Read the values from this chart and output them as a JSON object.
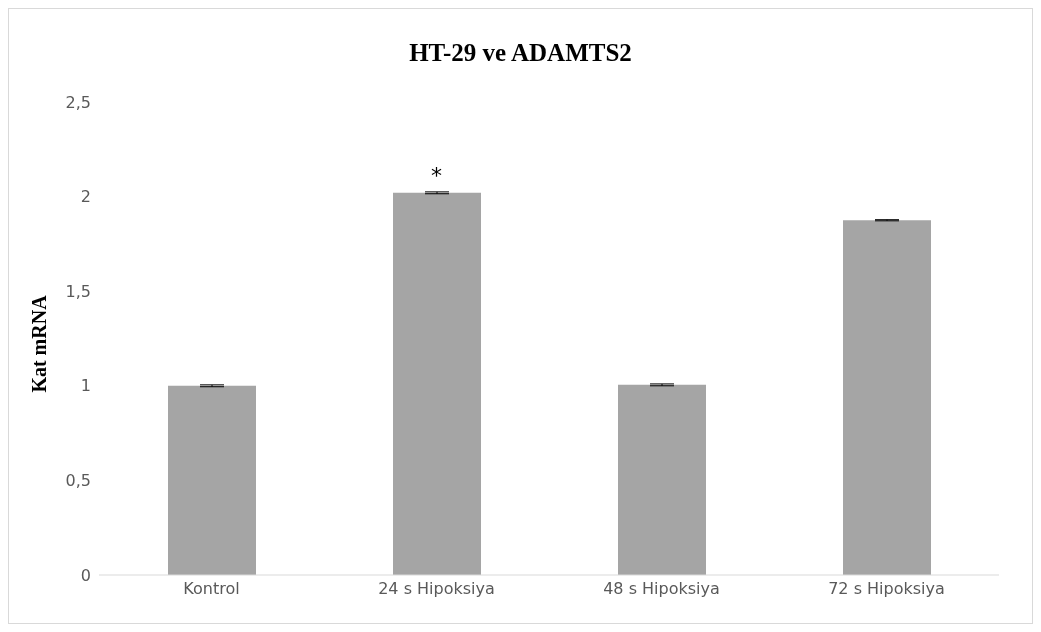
{
  "chart_data": {
    "type": "bar",
    "title": "HT-29 ve ADAMTS2",
    "ylabel": "Kat mRNA",
    "categories": [
      "Kontrol",
      "24 s Hipoksiya",
      "48 s Hipoksiya",
      "72 s Hipoksiya"
    ],
    "values": [
      1.0,
      2.02,
      1.005,
      1.875
    ],
    "errors": [
      0.005,
      0.005,
      0.005,
      0.003
    ],
    "color": "#a5a5a5",
    "ylim": [
      0,
      2.5
    ],
    "yticks": [
      {
        "value": 0,
        "label": "0"
      },
      {
        "value": 0.5,
        "label": "0,5"
      },
      {
        "value": 1,
        "label": "1"
      },
      {
        "value": 1.5,
        "label": "1,5"
      },
      {
        "value": 2,
        "label": "2"
      },
      {
        "value": 2.5,
        "label": "2,5"
      }
    ],
    "annotations": [
      {
        "text": "*",
        "x": "24 s Hipoksiya",
        "y": 2.02
      }
    ],
    "grid": false,
    "legend": false
  }
}
